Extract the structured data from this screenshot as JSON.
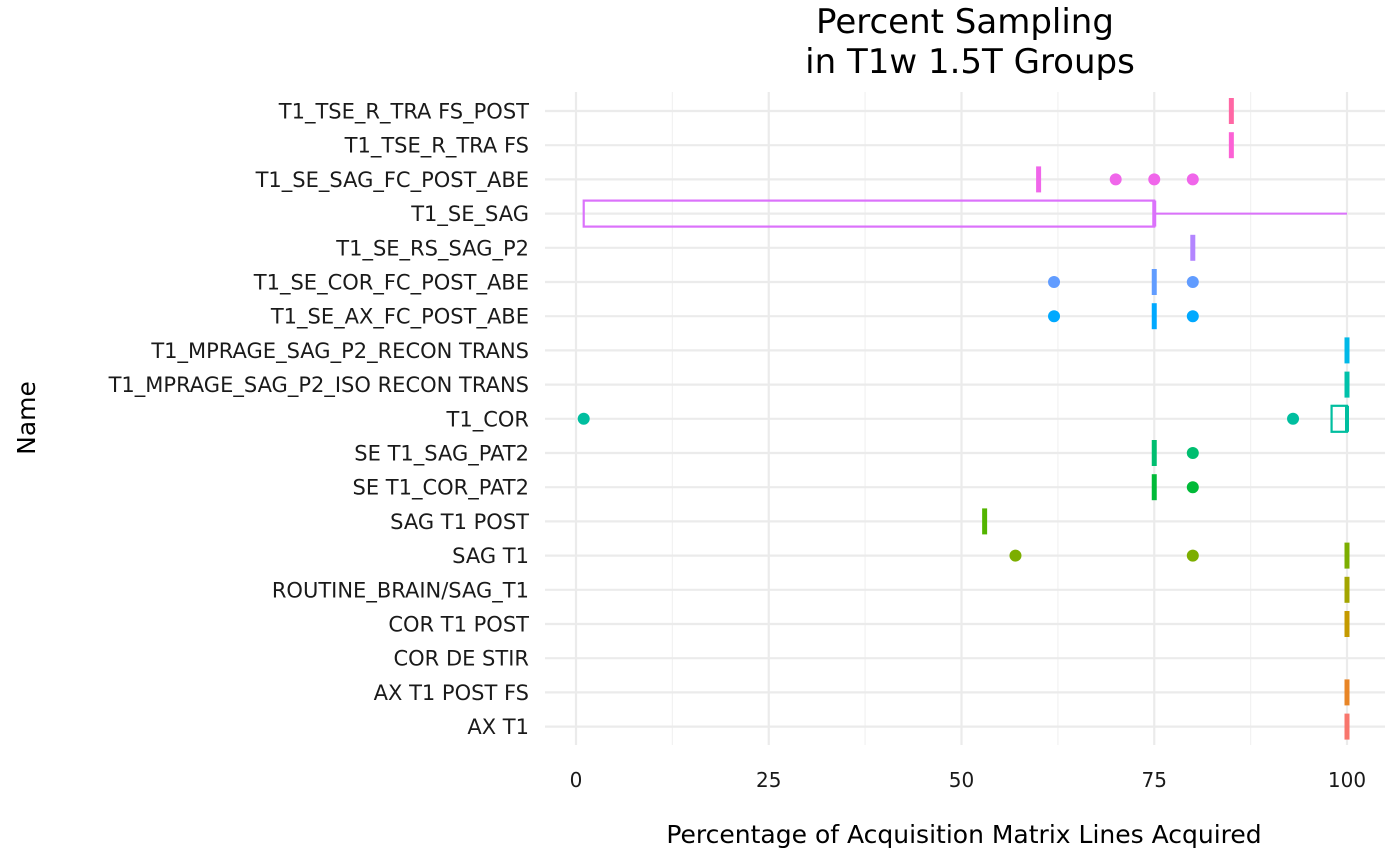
{
  "chart_data": {
    "type": "boxplot",
    "title_lines": [
      "Percent Sampling",
      "in T1w 1.5T Groups"
    ],
    "xlabel": "Percentage of Acquisition Matrix Lines Acquired",
    "ylabel": "Name",
    "xlim": [
      0,
      100
    ],
    "x_ticks": [
      0,
      25,
      50,
      75,
      100
    ],
    "x_tick_labels": [
      "0",
      "25",
      "50",
      "75",
      "100"
    ],
    "grid": true,
    "legend": "none",
    "categories": [
      "T1_TSE_R_TRA FS_POST",
      "T1_TSE_R_TRA FS",
      "T1_SE_SAG_FC_POST_ABE",
      "T1_SE_SAG",
      "T1_SE_RS_SAG_P2",
      "T1_SE_COR_FC_POST_ABE",
      "T1_SE_AX_FC_POST_ABE",
      "T1_MPRAGE_SAG_P2_RECON TRANS",
      "T1_MPRAGE_SAG_P2_ISO RECON TRANS",
      "T1_COR",
      "SE T1_SAG_PAT2",
      "SE T1_COR_PAT2",
      "SAG T1 POST",
      "SAG T1",
      "ROUTINE_BRAIN/SAG_T1",
      "COR T1 POST",
      "COR DE STIR",
      "AX T1 POST FS",
      "AX T1"
    ],
    "series": [
      {
        "category": "T1_TSE_R_TRA FS_POST",
        "color": "#FF67A4",
        "q1": 85,
        "median": 85,
        "q3": 85,
        "whisker_low": 85,
        "whisker_high": 85,
        "outliers": []
      },
      {
        "category": "T1_TSE_R_TRA FS",
        "color": "#FC61D5",
        "q1": 85,
        "median": 85,
        "q3": 85,
        "whisker_low": 85,
        "whisker_high": 85,
        "outliers": []
      },
      {
        "category": "T1_SE_SAG_FC_POST_ABE",
        "color": "#F066EA",
        "q1": 60,
        "median": 60,
        "q3": 60,
        "whisker_low": 60,
        "whisker_high": 60,
        "outliers": [
          70,
          75,
          80
        ]
      },
      {
        "category": "T1_SE_SAG",
        "color": "#DB72FB",
        "q1": 1,
        "median": 75,
        "q3": 75,
        "whisker_low": 1,
        "whisker_high": 100,
        "outliers": []
      },
      {
        "category": "T1_SE_RS_SAG_P2",
        "color": "#B385FF",
        "q1": 80,
        "median": 80,
        "q3": 80,
        "whisker_low": 80,
        "whisker_high": 80,
        "outliers": []
      },
      {
        "category": "T1_SE_COR_FC_POST_ABE",
        "color": "#619CFF",
        "q1": 75,
        "median": 75,
        "q3": 75,
        "whisker_low": 75,
        "whisker_high": 75,
        "outliers": [
          62,
          80
        ]
      },
      {
        "category": "T1_SE_AX_FC_POST_ABE",
        "color": "#00A9FF",
        "q1": 75,
        "median": 75,
        "q3": 75,
        "whisker_low": 75,
        "whisker_high": 75,
        "outliers": [
          62,
          80
        ]
      },
      {
        "category": "T1_MPRAGE_SAG_P2_RECON TRANS",
        "color": "#00B8E7",
        "q1": 100,
        "median": 100,
        "q3": 100,
        "whisker_low": 100,
        "whisker_high": 100,
        "outliers": []
      },
      {
        "category": "T1_MPRAGE_SAG_P2_ISO RECON TRANS",
        "color": "#00C1AA",
        "q1": 100,
        "median": 100,
        "q3": 100,
        "whisker_low": 100,
        "whisker_high": 100,
        "outliers": []
      },
      {
        "category": "T1_COR",
        "color": "#00BE9F",
        "q1": 98,
        "median": 100,
        "q3": 100,
        "whisker_low": 98,
        "whisker_high": 100,
        "outliers": [
          1,
          93
        ]
      },
      {
        "category": "SE T1_SAG_PAT2",
        "color": "#00BE70",
        "q1": 75,
        "median": 75,
        "q3": 75,
        "whisker_low": 75,
        "whisker_high": 75,
        "outliers": [
          80
        ]
      },
      {
        "category": "SE T1_COR_PAT2",
        "color": "#00BA38",
        "q1": 75,
        "median": 75,
        "q3": 75,
        "whisker_low": 75,
        "whisker_high": 75,
        "outliers": [
          80
        ]
      },
      {
        "category": "SAG T1 POST",
        "color": "#53B400",
        "q1": 53,
        "median": 53,
        "q3": 53,
        "whisker_low": 53,
        "whisker_high": 53,
        "outliers": []
      },
      {
        "category": "SAG T1",
        "color": "#7CAE00",
        "q1": 100,
        "median": 100,
        "q3": 100,
        "whisker_low": 100,
        "whisker_high": 100,
        "outliers": [
          57,
          80
        ]
      },
      {
        "category": "ROUTINE_BRAIN/SAG_T1",
        "color": "#A3A500",
        "q1": 100,
        "median": 100,
        "q3": 100,
        "whisker_low": 100,
        "whisker_high": 100,
        "outliers": []
      },
      {
        "category": "COR T1 POST",
        "color": "#C49A00",
        "q1": 100,
        "median": 100,
        "q3": 100,
        "whisker_low": 100,
        "whisker_high": 100,
        "outliers": []
      },
      {
        "category": "COR DE STIR",
        "color": "#D89000",
        "q1": null,
        "median": null,
        "q3": null,
        "whisker_low": null,
        "whisker_high": null,
        "outliers": []
      },
      {
        "category": "AX T1 POST FS",
        "color": "#E88526",
        "q1": 100,
        "median": 100,
        "q3": 100,
        "whisker_low": 100,
        "whisker_high": 100,
        "outliers": []
      },
      {
        "category": "AX T1",
        "color": "#F8766D",
        "q1": 100,
        "median": 100,
        "q3": 100,
        "whisker_low": 100,
        "whisker_high": 100,
        "outliers": []
      }
    ]
  }
}
